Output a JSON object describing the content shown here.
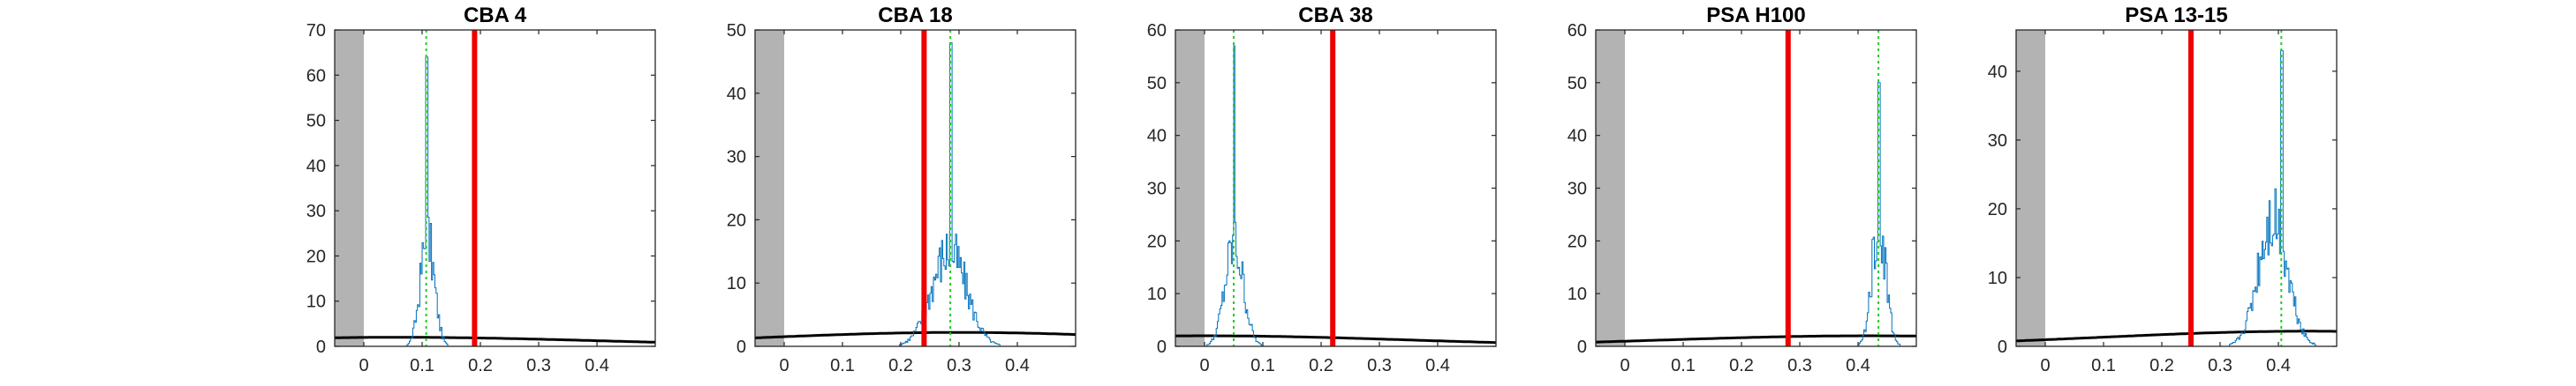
{
  "chart_data": [
    {
      "type": "histogram",
      "title": "CBA 4",
      "xlim": [
        -0.05,
        0.5
      ],
      "ylim": [
        0,
        70
      ],
      "xticks": [
        0,
        0.1,
        0.2,
        0.3,
        0.4
      ],
      "xtick_labels": [
        "0",
        "0.1",
        "0.2",
        "0.3",
        "0.4"
      ],
      "yticks": [
        0,
        10,
        20,
        30,
        40,
        50,
        60,
        70
      ],
      "ytick_labels": [
        "0",
        "10",
        "20",
        "30",
        "40",
        "50",
        "60",
        "70"
      ],
      "shaded_region": [
        -0.05,
        0
      ],
      "red_line_x": 0.19,
      "green_line_x": 0.107,
      "histogram": {
        "center": 0.108,
        "width": 0.012,
        "peak": 24,
        "spike_x": 0.107,
        "spike_y": 64
      },
      "black_curve": {
        "mean": 0.06,
        "sd": 0.35,
        "scale": 2.0
      }
    },
    {
      "type": "histogram",
      "title": "CBA 18",
      "xlim": [
        -0.05,
        0.5
      ],
      "ylim": [
        0,
        50
      ],
      "xticks": [
        0,
        0.1,
        0.2,
        0.3,
        0.4
      ],
      "xtick_labels": [
        "0",
        "0.1",
        "0.2",
        "0.3",
        "0.4"
      ],
      "yticks": [
        0,
        10,
        20,
        30,
        40,
        50
      ],
      "ytick_labels": [
        "0",
        "10",
        "20",
        "30",
        "40",
        "50"
      ],
      "shaded_region": [
        -0.05,
        0
      ],
      "red_line_x": 0.24,
      "green_line_x": 0.285,
      "histogram": {
        "center": 0.282,
        "width": 0.03,
        "peak": 15,
        "spike_x": 0.285,
        "spike_y": 48
      },
      "black_curve": {
        "mean": 0.3,
        "sd": 0.35,
        "scale": 2.2
      }
    },
    {
      "type": "histogram",
      "title": "CBA 38",
      "xlim": [
        -0.05,
        0.5
      ],
      "ylim": [
        0,
        60
      ],
      "xticks": [
        0,
        0.1,
        0.2,
        0.3,
        0.4
      ],
      "xtick_labels": [
        "0",
        "0.1",
        "0.2",
        "0.3",
        "0.4"
      ],
      "yticks": [
        0,
        10,
        20,
        30,
        40,
        50,
        60
      ],
      "ytick_labels": [
        "0",
        "10",
        "20",
        "30",
        "40",
        "50",
        "60"
      ],
      "shaded_region": [
        -0.05,
        0
      ],
      "red_line_x": 0.22,
      "green_line_x": 0.05,
      "histogram": {
        "center": 0.05,
        "width": 0.016,
        "peak": 19,
        "spike_x": 0.05,
        "spike_y": 57
      },
      "black_curve": {
        "mean": 0.0,
        "sd": 0.35,
        "scale": 2.0
      }
    },
    {
      "type": "histogram",
      "title": "PSA H100",
      "xlim": [
        -0.05,
        0.5
      ],
      "ylim": [
        0,
        60
      ],
      "xticks": [
        0,
        0.1,
        0.2,
        0.3,
        0.4
      ],
      "xtick_labels": [
        "0",
        "0.1",
        "0.2",
        "0.3",
        "0.4"
      ],
      "yticks": [
        0,
        10,
        20,
        30,
        40,
        50,
        60
      ],
      "ytick_labels": [
        "0",
        "10",
        "20",
        "30",
        "40",
        "50",
        "60"
      ],
      "shaded_region": [
        -0.05,
        0
      ],
      "red_line_x": 0.28,
      "green_line_x": 0.435,
      "histogram": {
        "center": 0.435,
        "width": 0.012,
        "peak": 24,
        "spike_x": 0.435,
        "spike_y": 50
      },
      "black_curve": {
        "mean": 0.42,
        "sd": 0.35,
        "scale": 2.0
      }
    },
    {
      "type": "histogram",
      "title": "PSA 13-15",
      "xlim": [
        -0.05,
        0.5
      ],
      "ylim": [
        0,
        46
      ],
      "xticks": [
        0,
        0.1,
        0.2,
        0.3,
        0.4
      ],
      "xtick_labels": [
        "0",
        "0.1",
        "0.2",
        "0.3",
        "0.4"
      ],
      "yticks": [
        0,
        10,
        20,
        30,
        40
      ],
      "ytick_labels": [
        "0",
        "10",
        "20",
        "30",
        "40"
      ],
      "shaded_region": [
        -0.05,
        0
      ],
      "red_line_x": 0.25,
      "green_line_x": 0.405,
      "histogram": {
        "center": 0.39,
        "width": 0.025,
        "peak": 19,
        "spike_x": 0.405,
        "spike_y": 43
      },
      "black_curve": {
        "mean": 0.45,
        "sd": 0.35,
        "scale": 2.2
      }
    }
  ]
}
